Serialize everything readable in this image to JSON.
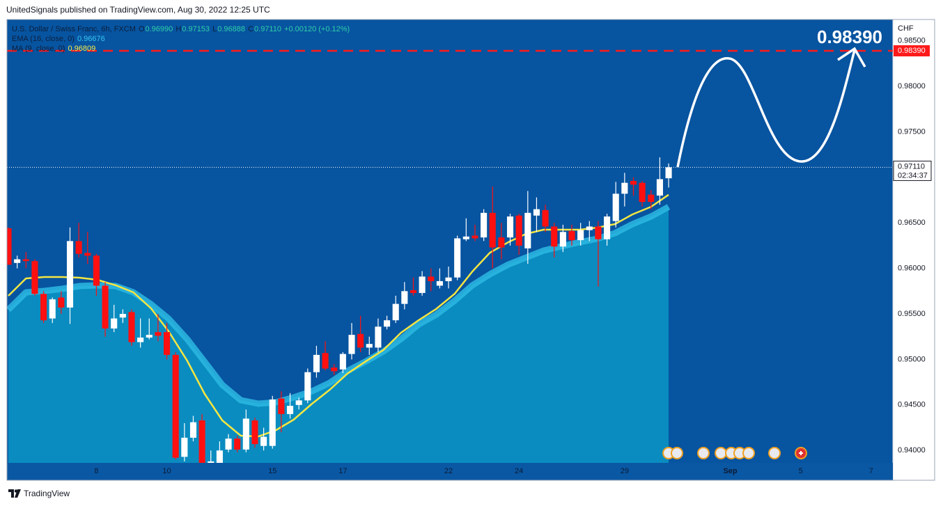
{
  "header": "UnitedSignals published on TradingView.com, Aug 30, 2022 12:25 UTC",
  "footer": "TradingView",
  "chart_data": {
    "type": "candlestick",
    "title": "U.S. Dollar / Swiss Franc, 6h, FXCM",
    "ohlc_legend": [
      {
        "label": "O",
        "value": "0.96990"
      },
      {
        "label": "H",
        "value": "0.97153"
      },
      {
        "label": "L",
        "value": "0.96888"
      },
      {
        "label": "C",
        "value": "0.97110"
      }
    ],
    "change": "+0.00120 (+0.12%)",
    "x": [
      0,
      1,
      2,
      3,
      4,
      5,
      6,
      7,
      8,
      9,
      10,
      11,
      12,
      13,
      14,
      15,
      16,
      17,
      18,
      19,
      20,
      21,
      22,
      23,
      24,
      25,
      26,
      27,
      28,
      29,
      30,
      31,
      32,
      33,
      34,
      35,
      36,
      37,
      38,
      39,
      40,
      41,
      42,
      43,
      44,
      45,
      46,
      47,
      48,
      49,
      50,
      51,
      52,
      53,
      54,
      55,
      56,
      57,
      58,
      59,
      60,
      61,
      62,
      63,
      64,
      65,
      66,
      67,
      68,
      69,
      70,
      71,
      72,
      73,
      74,
      75
    ],
    "open": [
      0.9644,
      0.9606,
      0.961,
      0.9608,
      0.9572,
      0.9545,
      0.9568,
      0.9557,
      0.963,
      0.9617,
      0.9614,
      0.9581,
      0.9534,
      0.9546,
      0.9552,
      0.9519,
      0.9524,
      0.953,
      0.953,
      0.9505,
      0.9393,
      0.9414,
      0.9433,
      0.9385,
      0.9386,
      0.9401,
      0.9413,
      0.9401,
      0.9433,
      0.9405,
      0.9405,
      0.9457,
      0.944,
      0.945,
      0.9455,
      0.9486,
      0.9507,
      0.9491,
      0.9489,
      0.9506,
      0.9528,
      0.9513,
      0.9513,
      0.9536,
      0.9543,
      0.9561,
      0.9576,
      0.9573,
      0.9591,
      0.9581,
      0.9586,
      0.959,
      0.9632,
      0.9636,
      0.9634,
      0.9661,
      0.9634,
      0.9634,
      0.9658,
      0.9622,
      0.9658,
      0.9664,
      0.9646,
      0.9624,
      0.9641,
      0.9631,
      0.9642,
      0.9646,
      0.9632,
      0.9652,
      0.9682,
      0.9696,
      0.9694,
      0.9681,
      0.968,
      0.9699
    ],
    "high": [
      0.9645,
      0.9614,
      0.9618,
      0.961,
      0.9575,
      0.9568,
      0.9575,
      0.9645,
      0.965,
      0.964,
      0.9616,
      0.9585,
      0.956,
      0.9555,
      0.9555,
      0.9545,
      0.9545,
      0.955,
      0.954,
      0.9508,
      0.943,
      0.9438,
      0.944,
      0.94,
      0.941,
      0.9418,
      0.9416,
      0.9445,
      0.9436,
      0.9425,
      0.946,
      0.9465,
      0.9463,
      0.9458,
      0.949,
      0.9515,
      0.952,
      0.9495,
      0.9508,
      0.954,
      0.9548,
      0.9525,
      0.9545,
      0.9548,
      0.957,
      0.9585,
      0.959,
      0.9597,
      0.96,
      0.96,
      0.9602,
      0.9636,
      0.9655,
      0.9648,
      0.9665,
      0.969,
      0.965,
      0.966,
      0.966,
      0.9685,
      0.9678,
      0.967,
      0.965,
      0.9648,
      0.9648,
      0.965,
      0.9652,
      0.9652,
      0.966,
      0.9695,
      0.9705,
      0.97,
      0.9696,
      0.9686,
      0.9722,
      0.97153
    ],
    "low": [
      0.9604,
      0.96,
      0.96,
      0.957,
      0.954,
      0.954,
      0.955,
      0.9539,
      0.9612,
      0.9605,
      0.957,
      0.9525,
      0.953,
      0.954,
      0.9515,
      0.9513,
      0.9522,
      0.952,
      0.95,
      0.939,
      0.9388,
      0.941,
      0.9382,
      0.938,
      0.9382,
      0.9398,
      0.9398,
      0.9398,
      0.9403,
      0.94,
      0.9402,
      0.942,
      0.9435,
      0.9445,
      0.9452,
      0.948,
      0.9488,
      0.9483,
      0.9485,
      0.95,
      0.9508,
      0.9505,
      0.9508,
      0.9533,
      0.954,
      0.9555,
      0.957,
      0.957,
      0.9575,
      0.9578,
      0.9578,
      0.9587,
      0.963,
      0.963,
      0.963,
      0.96,
      0.961,
      0.9625,
      0.9615,
      0.9605,
      0.964,
      0.964,
      0.9612,
      0.9618,
      0.9625,
      0.9625,
      0.963,
      0.958,
      0.9625,
      0.9645,
      0.9668,
      0.968,
      0.9668,
      0.9665,
      0.967,
      0.96888
    ],
    "close": [
      0.9604,
      0.961,
      0.9608,
      0.9572,
      0.9543,
      0.9566,
      0.9557,
      0.963,
      0.9616,
      0.9614,
      0.9581,
      0.9534,
      0.9545,
      0.955,
      0.9519,
      0.9524,
      0.9527,
      0.9526,
      0.9505,
      0.9392,
      0.9414,
      0.9431,
      0.9383,
      0.9388,
      0.94,
      0.9413,
      0.9401,
      0.9435,
      0.9407,
      0.9415,
      0.9456,
      0.944,
      0.9449,
      0.9455,
      0.9486,
      0.9505,
      0.949,
      0.9487,
      0.9506,
      0.9527,
      0.9513,
      0.9517,
      0.9536,
      0.9543,
      0.9561,
      0.9575,
      0.9573,
      0.9591,
      0.9586,
      0.9586,
      0.959,
      0.9633,
      0.9635,
      0.9633,
      0.9661,
      0.9623,
      0.9623,
      0.9657,
      0.9625,
      0.9661,
      0.9665,
      0.9646,
      0.9624,
      0.964,
      0.9631,
      0.9642,
      0.9646,
      0.9632,
      0.9657,
      0.9682,
      0.9694,
      0.9692,
      0.9673,
      0.9673,
      0.9698,
      0.9711
    ],
    "up_color": "#ffffff",
    "down_color": "#ff1010",
    "series": [
      {
        "name": "EMA (16, close, 0)",
        "value_label": "0.96676",
        "color": "#2cb8e2",
        "fill": "#0a8cc0",
        "x": [
          0,
          2,
          4.1,
          6.1,
          8.1,
          10.1,
          12.2,
          14.2,
          16.2,
          18.2,
          20.3,
          22.3,
          24.3,
          26.4,
          28.4,
          30.4,
          32.4,
          34.5,
          36.5,
          38.5,
          40.5,
          42.6,
          44.6,
          46.6,
          48.6,
          50.7,
          52.7,
          54.7,
          56.8,
          58.8,
          60.8,
          62.8,
          64.9,
          66.9,
          68.9,
          70.9,
          73,
          75
        ],
        "values": [
          0.95546,
          0.95737,
          0.95752,
          0.95775,
          0.95806,
          0.95814,
          0.95806,
          0.95737,
          0.95607,
          0.95447,
          0.95225,
          0.94973,
          0.9472,
          0.94552,
          0.94514,
          0.94529,
          0.94583,
          0.94651,
          0.94743,
          0.94873,
          0.94973,
          0.95087,
          0.95225,
          0.95385,
          0.95492,
          0.95645,
          0.95814,
          0.95936,
          0.96043,
          0.96119,
          0.96196,
          0.96242,
          0.96288,
          0.96326,
          0.96387,
          0.96486,
          0.9657,
          0.96676
        ]
      },
      {
        "name": "MA (9, close, 0)",
        "value_label": "0.96809",
        "color": "#f5e642",
        "x": [
          0,
          2,
          4.1,
          6.1,
          8.1,
          10.1,
          12.2,
          14.2,
          16.2,
          18.2,
          20.3,
          22.3,
          24.3,
          26.4,
          28.4,
          30.4,
          32.4,
          34.5,
          36.5,
          38.5,
          40.5,
          42.6,
          44.6,
          46.6,
          48.6,
          50.7,
          52.7,
          54.7,
          56.8,
          58.8,
          60.8,
          62.8,
          64.9,
          66.9,
          68.9,
          70.9,
          73,
          75
        ],
        "values": [
          0.95699,
          0.9589,
          0.95905,
          0.95905,
          0.95898,
          0.95875,
          0.95814,
          0.95737,
          0.95561,
          0.95309,
          0.94988,
          0.94621,
          0.9433,
          0.94162,
          0.94154,
          0.94223,
          0.94338,
          0.94514,
          0.94667,
          0.94843,
          0.94973,
          0.95103,
          0.95294,
          0.95431,
          0.95554,
          0.95722,
          0.95966,
          0.96173,
          0.96288,
          0.96379,
          0.96425,
          0.96425,
          0.96425,
          0.96448,
          0.96486,
          0.96593,
          0.96677,
          0.96809
        ]
      }
    ],
    "xlim": [
      -0.16,
      100.47
    ],
    "xticks": [
      {
        "value": 10,
        "label": "8"
      },
      {
        "value": 18,
        "label": "10"
      },
      {
        "value": 30,
        "label": "15"
      },
      {
        "value": 38,
        "label": "17"
      },
      {
        "value": 50,
        "label": "22"
      },
      {
        "value": 58,
        "label": "24"
      },
      {
        "value": 70,
        "label": "29"
      },
      {
        "value": 82,
        "label": "Sep"
      },
      {
        "value": 90,
        "label": "5"
      },
      {
        "value": 98,
        "label": "7"
      }
    ],
    "ylim": [
      0.93864,
      0.98734
    ],
    "yticks": [
      {
        "value": 0.985,
        "label": "0.98500"
      },
      {
        "value": 0.98,
        "label": "0.98000"
      },
      {
        "value": 0.975,
        "label": "0.97500"
      },
      {
        "value": 0.965,
        "label": "0.96500"
      },
      {
        "value": 0.96,
        "label": "0.96000"
      },
      {
        "value": 0.955,
        "label": "0.95500"
      },
      {
        "value": 0.95,
        "label": "0.95000"
      },
      {
        "value": 0.945,
        "label": "0.94500"
      },
      {
        "value": 0.94,
        "label": "0.94000"
      }
    ],
    "y_axis_label": "CHF",
    "last_price_label": "0.97110",
    "countdown": "02:34:37",
    "target": {
      "value": 0.9839,
      "label": "0.98390",
      "color": "#ff1a1a"
    }
  }
}
